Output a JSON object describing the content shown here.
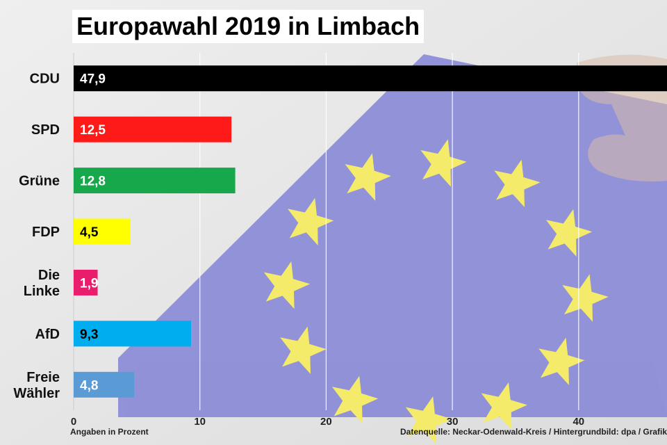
{
  "chart_data": {
    "type": "bar",
    "orientation": "horizontal",
    "title": "Europawahl 2019 in Limbach",
    "categories": [
      "CDU",
      "SPD",
      "Grüne",
      "FDP",
      "Die Linke",
      "AfD",
      "Freie Wähler"
    ],
    "values": [
      47.9,
      12.5,
      12.8,
      4.5,
      1.9,
      9.3,
      4.8
    ],
    "value_labels": [
      "47,9",
      "12,5",
      "12,8",
      "4,5",
      "1,9",
      "9,3",
      "4,8"
    ],
    "colors": [
      "#000000",
      "#ff1a1a",
      "#18a84c",
      "#ffff00",
      "#ea1c6c",
      "#00adee",
      "#5b9bd5"
    ],
    "label_colors": [
      "#ffffff",
      "#ffffff",
      "#ffffff",
      "#000000",
      "#ffffff",
      "#000000",
      "#ffffff"
    ],
    "xlim": [
      0,
      47
    ],
    "xticks": [
      0,
      10,
      20,
      30,
      40
    ],
    "grid": true,
    "xlabel": "",
    "ylabel": ""
  },
  "footer": {
    "unit_note": "Angaben in Prozent",
    "source": "Datenquelle: Neckar-Odenwald-Kreis / Hintergrundbild: dpa / Grafik:"
  }
}
